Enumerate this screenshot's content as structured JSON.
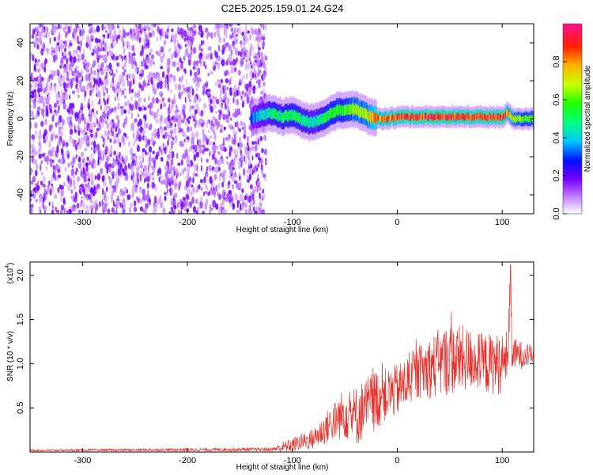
{
  "title": "C2E5.2025.159.01.24.G24",
  "chart_data": [
    {
      "type": "heatmap",
      "xlabel": "Height of straight line (km)",
      "ylabel": "Frequency (Hz)",
      "xlim": [
        -350,
        130
      ],
      "ylim": [
        -50,
        50
      ],
      "x_ticks": [
        -300,
        -200,
        -100,
        0,
        100
      ],
      "x_tick_labels": [
        "-300",
        "-200",
        "-100",
        "0",
        "100"
      ],
      "y_ticks": [
        -40,
        -20,
        0,
        20,
        40
      ],
      "y_tick_labels": [
        "-40",
        "-20",
        "0",
        "20",
        "40"
      ],
      "noise_region_x": [
        -350,
        -125
      ],
      "signal_ridge": {
        "x": [
          -140,
          -130,
          -120,
          -110,
          -100,
          -90,
          -80,
          -70,
          -60,
          -50,
          -40,
          -30,
          -20,
          -10,
          0,
          20,
          40,
          60,
          80,
          100,
          105,
          110,
          130
        ],
        "freq": [
          0,
          2,
          3,
          1,
          2,
          -1,
          -2,
          0,
          4,
          5,
          5,
          2,
          0,
          0,
          1,
          1,
          1,
          1,
          1,
          1,
          3,
          0,
          0
        ],
        "amplitude": [
          0.3,
          0.45,
          0.5,
          0.5,
          0.55,
          0.5,
          0.45,
          0.55,
          0.6,
          0.6,
          0.65,
          0.7,
          0.85,
          0.85,
          0.9,
          0.9,
          0.9,
          0.9,
          0.9,
          0.9,
          0.8,
          0.7,
          0.6
        ]
      },
      "colorbar": {
        "label": "Normalized spectral amplitude",
        "range": [
          0,
          1
        ],
        "ticks": [
          0.0,
          0.2,
          0.4,
          0.6,
          0.8
        ],
        "tick_labels": [
          "0.0",
          "0.2",
          "0.4",
          "0.6",
          "0.8"
        ]
      }
    },
    {
      "type": "line",
      "xlabel": "Height of straight line (km)",
      "ylabel": "SNR (10 * v/v)",
      "y_exponent_label": "(x10",
      "y_exponent_power": "4",
      "y_exponent_close": ")",
      "xlim": [
        -350,
        130
      ],
      "ylim": [
        0,
        2.15
      ],
      "x_ticks": [
        -300,
        -200,
        -100,
        0,
        100
      ],
      "x_tick_labels": [
        "-300",
        "-200",
        "-100",
        "0",
        "100"
      ],
      "y_ticks": [
        0.5,
        1.0,
        1.5,
        2.0
      ],
      "y_tick_labels": [
        "0.5",
        "1.0",
        "1.5",
        "2.0"
      ],
      "color": "#e8322c",
      "envelope": {
        "x": [
          -350,
          -120,
          -110,
          -100,
          -90,
          -80,
          -70,
          -60,
          -50,
          -40,
          -30,
          -20,
          -10,
          0,
          10,
          20,
          30,
          40,
          50,
          60,
          70,
          80,
          90,
          100,
          105,
          107,
          110,
          130
        ],
        "mean": [
          0.02,
          0.03,
          0.05,
          0.08,
          0.12,
          0.15,
          0.25,
          0.35,
          0.45,
          0.4,
          0.5,
          0.6,
          0.65,
          0.7,
          0.8,
          0.9,
          0.95,
          1.0,
          1.05,
          1.05,
          1.05,
          1.0,
          1.0,
          1.0,
          1.1,
          1.6,
          1.1,
          1.1
        ],
        "amp": [
          0.01,
          0.02,
          0.06,
          0.08,
          0.1,
          0.12,
          0.18,
          0.22,
          0.3,
          0.35,
          0.35,
          0.35,
          0.3,
          0.3,
          0.3,
          0.3,
          0.35,
          0.4,
          0.4,
          0.4,
          0.35,
          0.35,
          0.35,
          0.35,
          0.3,
          0.5,
          0.2,
          0.1
        ]
      },
      "spike": {
        "x": 108,
        "y": 2.12
      }
    }
  ]
}
